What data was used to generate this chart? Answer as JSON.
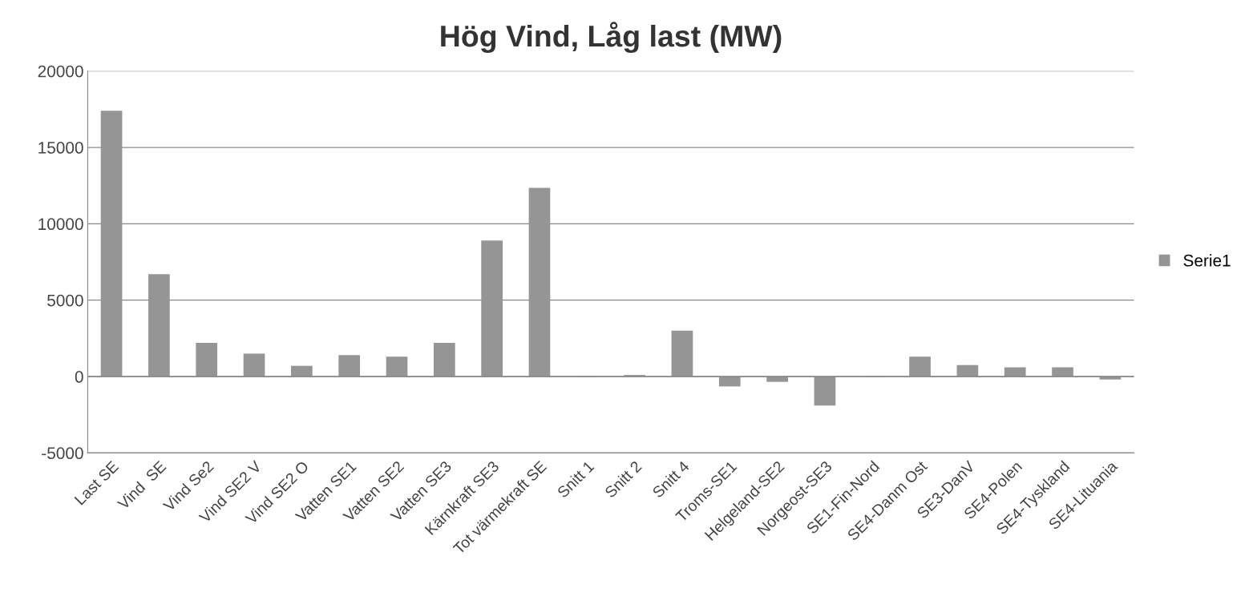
{
  "chart_data": {
    "type": "bar",
    "title": "Hög Vind, Låg last (MW)",
    "categories": [
      "Last SE",
      "Vind  SE",
      "Vind Se2",
      "Vind SE2 V",
      "Vind SE2 O",
      "Vatten SE1",
      "Vatten SE2",
      "Vatten SE3",
      "Kärnkraft SE3",
      "Tot värmekraft SE",
      "Snitt 1",
      "Snitt 2",
      "Snitt 4",
      "Troms-SE1",
      "Helgeland-SE2",
      "Norgeost-SE3",
      "SE1-Fin-Nord",
      "SE4-Danm Ost",
      "SE3-DanV",
      "SE4-Polen",
      "SE4-Tyskland",
      "SE4-Lituania"
    ],
    "series": [
      {
        "name": "Serie1",
        "color": "#959595",
        "values": [
          17400,
          6700,
          2200,
          1500,
          700,
          1400,
          1300,
          2200,
          8900,
          12350,
          -50,
          100,
          3000,
          -650,
          -350,
          -1900,
          -50,
          1300,
          750,
          600,
          600,
          -200
        ]
      }
    ],
    "ylim": [
      -5000,
      20000
    ],
    "yticks": [
      -5000,
      0,
      5000,
      10000,
      15000,
      20000
    ],
    "grid": "y",
    "legend": "right"
  }
}
